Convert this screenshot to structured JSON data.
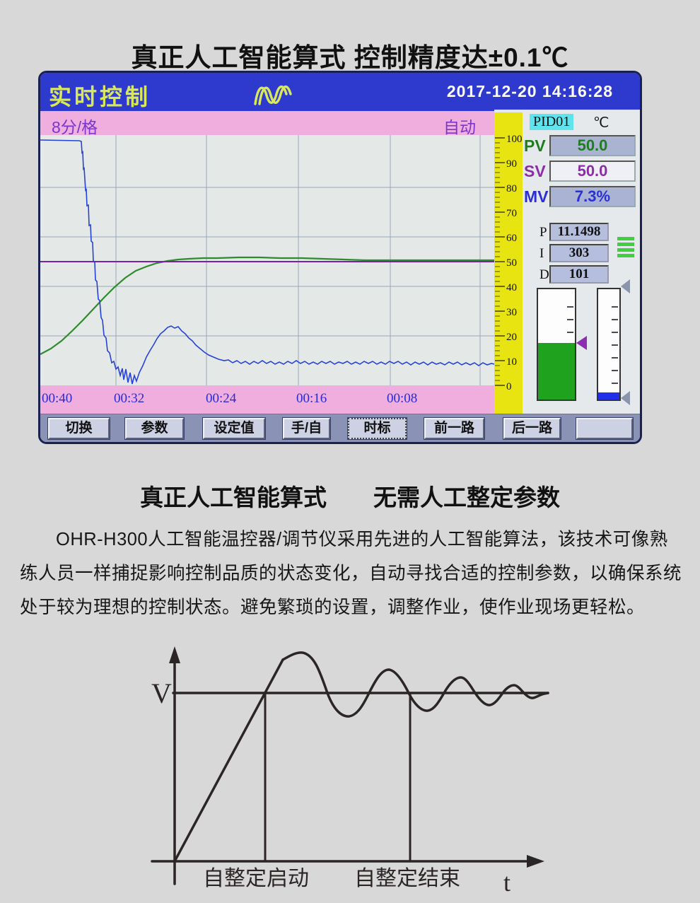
{
  "page": {
    "title1": "真正人工智能算式 控制精度达±0.1℃",
    "title2": "真正人工智能算式　　无需人工整定参数",
    "paragraph": "OHR-H300人工智能温控器/调节仪采用先进的人工智能算法，该技术可像熟练人员一样捕捉影响控制品质的状态变化，自动寻找合适的控制参数，以确保系统处于较为理想的控制状态。避免繁琐的设置，调整作业，使作业现场更轻松。"
  },
  "device": {
    "header": {
      "title": "实时控制",
      "timestamp": "2017-12-20 14:16:28"
    },
    "trend": {
      "interval_label": "8分/格",
      "mode_label": "自动",
      "time_labels": [
        "00:40",
        "00:32",
        "00:24",
        "00:16",
        "00:08"
      ]
    },
    "ruler": {
      "unit_labels": [
        "100",
        "90",
        "80",
        "70",
        "60",
        "50",
        "40",
        "30",
        "20",
        "10",
        "0"
      ]
    },
    "pid_panel": {
      "loop_label": "PID01",
      "unit": "℃",
      "rows": [
        {
          "label": "PV",
          "value": "50.0"
        },
        {
          "label": "SV",
          "value": "50.0"
        },
        {
          "label": "MV",
          "value": "7.3%"
        }
      ],
      "params": [
        {
          "label": "P",
          "value": "11.1498"
        },
        {
          "label": "I",
          "value": "303"
        },
        {
          "label": "D",
          "value": "101"
        }
      ]
    },
    "buttons": [
      "切换",
      "参数",
      "设定值",
      "手/自",
      "时标",
      "前一路",
      "后一路",
      ""
    ]
  },
  "diagram": {
    "y_label": "V",
    "x_label": "t",
    "start_label": "自整定启动",
    "end_label": "自整定结束"
  },
  "colors": {
    "header_blue": "#2e3ace",
    "pink_bar": "#efaede",
    "ruler_yellow": "#e8e412",
    "pv_green": "#2e8b2e",
    "sv_purple": "#7a1fa8",
    "mv_blue": "#2543d8"
  },
  "chart_data": {
    "type": "line",
    "x_tick_labels": [
      "00:40",
      "00:32",
      "00:24",
      "00:16",
      "00:08"
    ],
    "x_division": "8分/格",
    "ylim": [
      0,
      100
    ],
    "grid": true,
    "series": [
      {
        "name": "SV",
        "color": "#7a1fa8",
        "description": "设定值水平线",
        "approx": [
          [
            0,
            50
          ],
          [
            640,
            50
          ]
        ]
      },
      {
        "name": "PV",
        "color": "#2e8b2e",
        "description": "过程值S形升至50后保持",
        "approx": [
          [
            0,
            12
          ],
          [
            60,
            25
          ],
          [
            120,
            43
          ],
          [
            180,
            50
          ],
          [
            640,
            50
          ]
        ]
      },
      {
        "name": "MV",
        "color": "#2543d8",
        "description": "输出从100阶梯下降、回调后稳定于约9",
        "approx": [
          [
            0,
            99
          ],
          [
            60,
            99
          ],
          [
            95,
            60
          ],
          [
            135,
            4
          ],
          [
            193,
            22
          ],
          [
            273,
            10
          ],
          [
            640,
            9
          ]
        ]
      }
    ]
  }
}
